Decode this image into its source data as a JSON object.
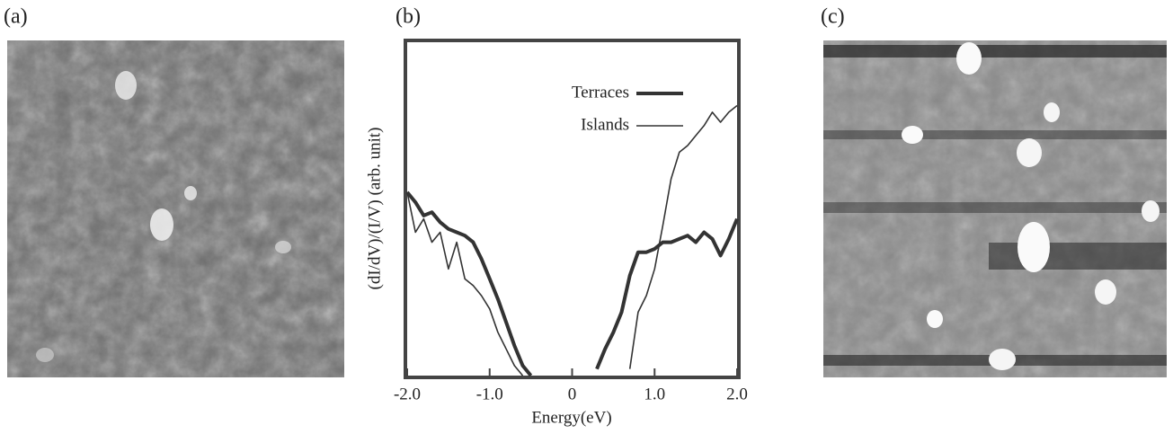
{
  "panels": {
    "a": "(a)",
    "b": "(b)",
    "c": "(c)"
  },
  "chart_data": {
    "type": "line",
    "xlabel": "Energy(eV)",
    "ylabel": "(dI/dV)/(I/V)  (arb. unit)",
    "x": [
      -2.0,
      -1.9,
      -1.8,
      -1.7,
      -1.6,
      -1.5,
      -1.4,
      -1.3,
      -1.2,
      -1.1,
      -1.0,
      -0.9,
      -0.8,
      -0.7,
      -0.6,
      -0.5,
      -0.4,
      -0.3,
      -0.2,
      -0.1,
      0,
      0.1,
      0.2,
      0.3,
      0.4,
      0.5,
      0.6,
      0.7,
      0.8,
      0.9,
      1.0,
      1.1,
      1.2,
      1.3,
      1.4,
      1.5,
      1.6,
      1.7,
      1.8,
      1.9,
      2.0
    ],
    "series": [
      {
        "name": "Terraces",
        "color": "#333333",
        "width": 4,
        "values": [
          0.55,
          0.52,
          0.48,
          0.49,
          0.46,
          0.44,
          0.43,
          0.42,
          0.4,
          0.35,
          0.29,
          0.23,
          0.16,
          0.09,
          0.03,
          0.0,
          null,
          null,
          null,
          null,
          null,
          null,
          null,
          0.02,
          0.08,
          0.13,
          0.19,
          0.3,
          0.37,
          0.37,
          0.38,
          0.4,
          0.4,
          0.41,
          0.42,
          0.4,
          0.43,
          0.41,
          0.36,
          0.41,
          0.47
        ]
      },
      {
        "name": "Islands",
        "color": "#333333",
        "width": 1.6,
        "values": [
          0.55,
          0.43,
          0.47,
          0.4,
          0.43,
          0.32,
          0.4,
          0.29,
          0.27,
          0.24,
          0.2,
          0.13,
          0.08,
          0.03,
          0.0,
          null,
          null,
          null,
          null,
          null,
          null,
          null,
          null,
          null,
          null,
          null,
          null,
          0.02,
          0.19,
          0.24,
          0.32,
          0.45,
          0.59,
          0.67,
          0.69,
          0.72,
          0.75,
          0.79,
          0.76,
          0.79,
          0.81
        ]
      }
    ],
    "xlim": [
      -2,
      2
    ],
    "ylim": [
      0,
      1
    ],
    "xticks": [
      {
        "value": -2,
        "label": "-2.0"
      },
      {
        "value": -1,
        "label": "-1.0"
      },
      0,
      {
        "value": 1,
        "label": "1.0"
      },
      {
        "value": 2,
        "label": "2.0"
      }
    ],
    "grid": false,
    "legend": "upper right"
  }
}
